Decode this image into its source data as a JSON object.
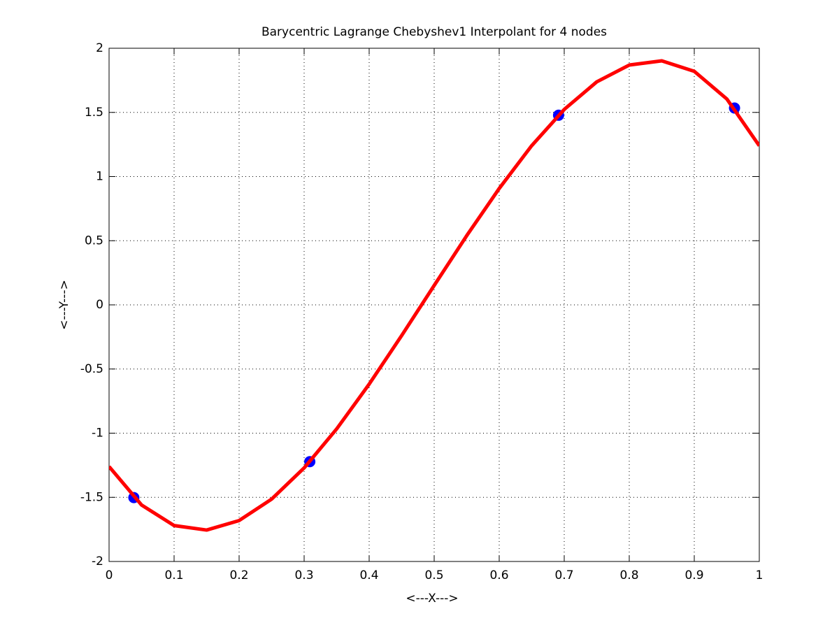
{
  "chart_data": {
    "type": "line",
    "title": "Barycentric Lagrange Chebyshev1 Interpolant for 4 nodes",
    "x_label": "<---X--->",
    "y_label": "<---Y--->",
    "xlim": [
      0,
      1
    ],
    "ylim": [
      -2,
      2
    ],
    "xticks": [
      0,
      0.1,
      0.2,
      0.3,
      0.4,
      0.5,
      0.6,
      0.7,
      0.8,
      0.9,
      1
    ],
    "yticks": [
      -2,
      -1.5,
      -1,
      -0.5,
      0,
      0.5,
      1,
      1.5,
      2
    ],
    "grid": true,
    "series": [
      {
        "style": "line",
        "color": "#ff0000",
        "x": [
          0,
          0.05,
          0.1,
          0.15,
          0.2,
          0.25,
          0.3,
          0.35,
          0.4,
          0.45,
          0.5,
          0.55,
          0.6,
          0.65,
          0.7,
          0.75,
          0.8,
          0.85,
          0.9,
          0.95,
          1
        ],
        "values": [
          -1.26,
          -1.56,
          -1.72,
          -1.755,
          -1.681,
          -1.514,
          -1.271,
          -0.967,
          -0.618,
          -0.239,
          0.151,
          0.539,
          0.907,
          1.241,
          1.523,
          1.738,
          1.869,
          1.902,
          1.82,
          1.605,
          1.24
        ]
      },
      {
        "style": "markers",
        "color": "#0000ff",
        "x": [
          0.0381,
          0.3087,
          0.6913,
          0.9619
        ],
        "values": [
          -1.502,
          -1.222,
          1.478,
          1.534
        ]
      }
    ]
  }
}
